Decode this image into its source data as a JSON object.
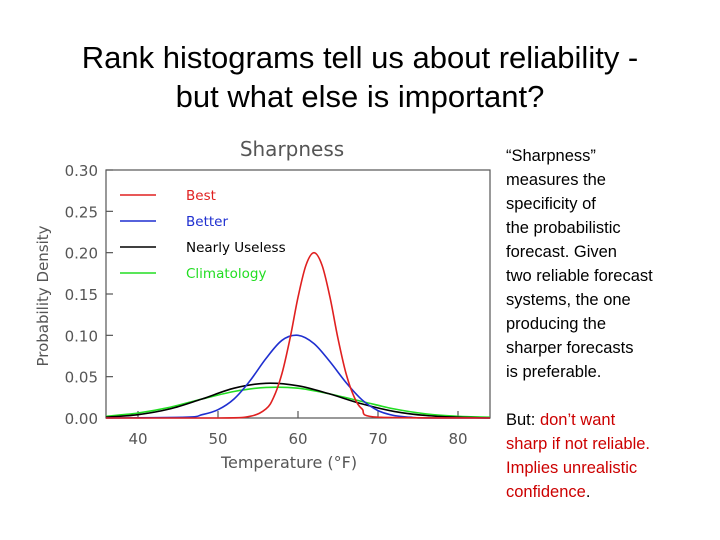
{
  "slide": {
    "title_line1": "Rank histograms tell us about reliability -",
    "title_line2": "but what else is important?",
    "para1_lines": [
      "“Sharpness”",
      "measures the",
      "specificity of",
      "the probabilistic",
      "forecast.  Given",
      "two reliable forecast",
      "systems, the one",
      "producing the",
      "sharper forecasts",
      "is preferable."
    ],
    "para2": {
      "line1_prefix": "But: ",
      "line1_red": "don’t want",
      "line2_red": "sharp if not reliable.",
      "line3_red": "Implies unrealistic",
      "line4_red": "confidence",
      "line4_end": "."
    }
  },
  "colors": {
    "red_text": "#cc0000",
    "series_best": "#e02020",
    "series_better": "#1f2fd0",
    "series_nearly_useless": "#000000",
    "series_climatology": "#22dd22"
  },
  "chart_data": {
    "type": "line",
    "title": "Sharpness",
    "xlabel": "Temperature (°F)",
    "ylabel": "Probability Density",
    "xlim": [
      36,
      84
    ],
    "ylim": [
      0,
      0.3
    ],
    "xticks": [
      "40",
      "50",
      "60",
      "70",
      "80"
    ],
    "yticks": [
      "0.00",
      "0.05",
      "0.10",
      "0.15",
      "0.20",
      "0.25",
      "0.30"
    ],
    "legend_position": "top-left",
    "grid": false,
    "series": [
      {
        "name": "Best",
        "color": "#e02020",
        "x": [
          36,
          50,
          54,
          56,
          57,
          58,
          59,
          60,
          61,
          62,
          63,
          64,
          65,
          66,
          67,
          68,
          70,
          84
        ],
        "y": [
          0,
          0,
          0.002,
          0.011,
          0.026,
          0.054,
          0.096,
          0.146,
          0.185,
          0.2,
          0.185,
          0.146,
          0.096,
          0.054,
          0.026,
          0.011,
          0.001,
          0
        ]
      },
      {
        "name": "Better",
        "color": "#1f2fd0",
        "x": [
          36,
          46,
          48,
          50,
          52,
          54,
          56,
          58,
          60,
          62,
          64,
          66,
          68,
          70,
          72,
          74,
          76,
          84
        ],
        "y": [
          0,
          0.001,
          0.004,
          0.01,
          0.023,
          0.045,
          0.072,
          0.094,
          0.1,
          0.09,
          0.068,
          0.043,
          0.022,
          0.009,
          0.003,
          0.001,
          0,
          0
        ]
      },
      {
        "name": "Nearly Useless",
        "color": "#000000",
        "x": [
          36,
          40,
          44,
          48,
          52,
          56,
          60,
          64,
          68,
          72,
          76,
          80,
          84
        ],
        "y": [
          0.001,
          0.004,
          0.011,
          0.023,
          0.036,
          0.042,
          0.039,
          0.029,
          0.017,
          0.008,
          0.003,
          0.001,
          0
        ]
      },
      {
        "name": "Climatology",
        "color": "#22dd22",
        "x": [
          36,
          40,
          44,
          48,
          52,
          56,
          60,
          64,
          68,
          72,
          76,
          80,
          84
        ],
        "y": [
          0.002,
          0.006,
          0.013,
          0.023,
          0.032,
          0.037,
          0.036,
          0.029,
          0.02,
          0.011,
          0.005,
          0.002,
          0.001
        ]
      }
    ]
  }
}
